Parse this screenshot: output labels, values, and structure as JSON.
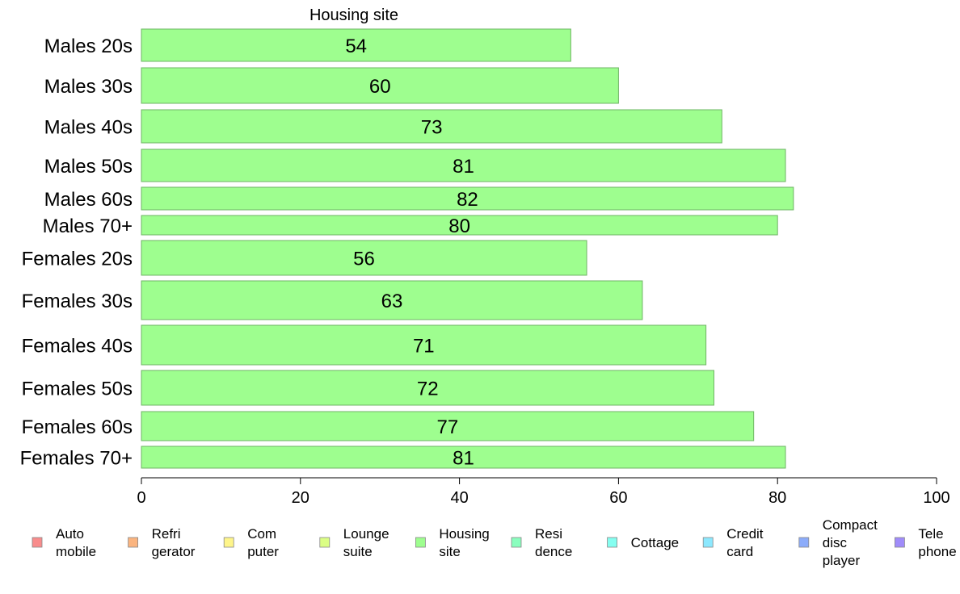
{
  "chart_data": {
    "type": "bar",
    "orientation": "horizontal",
    "title": "Housing site",
    "categories": [
      "Males 20s",
      "Males 30s",
      "Males 40s",
      "Males 50s",
      "Males 60s",
      "Males 70+",
      "Females 20s",
      "Females 30s",
      "Females 40s",
      "Females 50s",
      "Females 60s",
      "Females 70+"
    ],
    "values": [
      54,
      60,
      73,
      81,
      82,
      80,
      56,
      63,
      71,
      72,
      77,
      81
    ],
    "bar_labels": [
      "54",
      "60",
      "73",
      "81",
      "82",
      "80",
      "56",
      "63",
      "71",
      "72",
      "77",
      "81"
    ],
    "xlim": [
      0,
      100
    ],
    "xticks": [
      0,
      20,
      40,
      60,
      80,
      100
    ],
    "xtick_labels": [
      "0",
      "20",
      "40",
      "60",
      "80",
      "100"
    ],
    "grid": false,
    "bar_color": "#9efe8f",
    "bar_edge_color": "#6fb465",
    "legend_position": "bottom",
    "legend": [
      {
        "lines": [
          "Auto",
          "mobile"
        ],
        "color": "#f88c8c"
      },
      {
        "lines": [
          "Refri",
          "gerator"
        ],
        "color": "#fab47f"
      },
      {
        "lines": [
          "Com",
          "puter"
        ],
        "color": "#fef58a"
      },
      {
        "lines": [
          "Lounge",
          "suite"
        ],
        "color": "#dbfe85"
      },
      {
        "lines": [
          "Housing",
          "site"
        ],
        "color": "#9efe8f"
      },
      {
        "lines": [
          "Resi",
          "dence"
        ],
        "color": "#8afebe"
      },
      {
        "lines": [
          "Cottage"
        ],
        "color": "#85fef0"
      },
      {
        "lines": [
          "Credit",
          "card"
        ],
        "color": "#8ce8fe"
      },
      {
        "lines": [
          "Compact",
          "disc",
          "player"
        ],
        "color": "#8cacfa"
      },
      {
        "lines": [
          "Tele",
          "phone"
        ],
        "color": "#a08cfa"
      }
    ]
  }
}
